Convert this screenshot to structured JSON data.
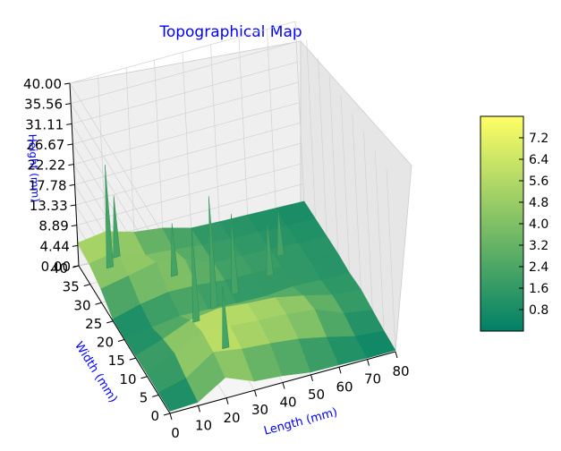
{
  "chart_data": {
    "type": "surface3d",
    "title": "Topographical Map",
    "xlabel": "Length (mm)",
    "ylabel": "Width (mm)",
    "zlabel": "Height (mm)",
    "xlim": [
      0,
      80
    ],
    "ylim": [
      0,
      40
    ],
    "zlim": [
      0,
      40
    ],
    "x_ticks": [
      "0",
      "10",
      "20",
      "30",
      "40",
      "50",
      "60",
      "70",
      "80"
    ],
    "y_ticks": [
      "0",
      "5",
      "10",
      "15",
      "20",
      "25",
      "30",
      "35",
      "40"
    ],
    "z_ticks": [
      "0.00",
      "4.44",
      "8.89",
      "13.33",
      "17.78",
      "22.22",
      "26.67",
      "31.11",
      "35.56",
      "40.00"
    ],
    "colorbar": {
      "colormap": "summer",
      "range": [
        0,
        8
      ],
      "ticks": [
        "0.8",
        "1.6",
        "2.4",
        "3.2",
        "4.0",
        "4.8",
        "5.6",
        "6.4",
        "7.2"
      ],
      "low_color": "#008066",
      "high_color": "#ffff66"
    },
    "grid": true,
    "label_color": "#0000ff",
    "surface": {
      "x": [
        0,
        10,
        20,
        30,
        40,
        50,
        60,
        70,
        80
      ],
      "y": [
        0,
        5,
        10,
        15,
        20,
        25,
        30,
        35,
        40
      ],
      "z": [
        [
          0.5,
          0.8,
          4.5,
          2.0,
          1.5,
          0.6,
          0.5,
          0.3,
          0.3
        ],
        [
          0.5,
          2.0,
          6.0,
          5.0,
          4.5,
          3.8,
          2.5,
          1.0,
          0.5
        ],
        [
          0.6,
          3.5,
          6.5,
          6.0,
          5.5,
          5.2,
          4.5,
          2.0,
          1.0
        ],
        [
          0.5,
          2.5,
          5.0,
          5.8,
          5.2,
          4.8,
          3.5,
          2.0,
          1.5
        ],
        [
          0.4,
          1.0,
          1.8,
          1.5,
          1.2,
          1.0,
          1.5,
          1.2,
          1.0
        ],
        [
          0.4,
          2.0,
          3.0,
          2.8,
          2.2,
          2.0,
          1.8,
          1.5,
          1.2
        ],
        [
          3.0,
          4.2,
          5.5,
          4.5,
          2.0,
          1.8,
          1.5,
          1.2,
          1.0
        ],
        [
          4.5,
          5.5,
          3.0,
          2.5,
          1.8,
          1.5,
          1.2,
          1.0,
          0.8
        ],
        [
          5.0,
          5.8,
          4.0,
          3.2,
          1.5,
          1.2,
          1.0,
          0.8,
          0.6
        ]
      ]
    },
    "spikes": [
      {
        "x": 24,
        "y": 18,
        "z": 22.0
      },
      {
        "x": 32,
        "y": 20,
        "z": 26.0
      },
      {
        "x": 41,
        "y": 22,
        "z": 19.0
      },
      {
        "x": 28,
        "y": 10,
        "z": 15.0
      },
      {
        "x": 55,
        "y": 24,
        "z": 14.0
      },
      {
        "x": 62,
        "y": 28,
        "z": 12.0
      },
      {
        "x": 8,
        "y": 36,
        "z": 24.0
      },
      {
        "x": 12,
        "y": 38,
        "z": 15.0
      },
      {
        "x": 26,
        "y": 30,
        "z": 13.0
      }
    ]
  }
}
